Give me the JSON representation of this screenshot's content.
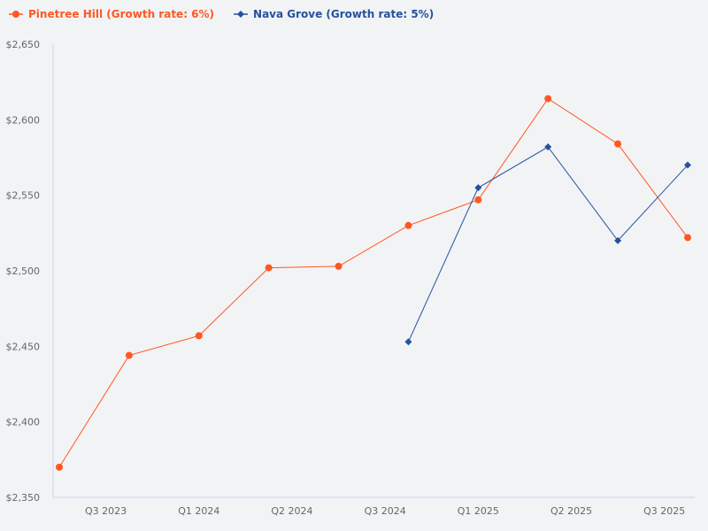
{
  "chart_data": {
    "type": "line",
    "title": "",
    "xlabel": "",
    "ylabel": "",
    "ylim": [
      2350,
      2650
    ],
    "yticks": [
      2350,
      2400,
      2450,
      2500,
      2550,
      2600,
      2650
    ],
    "ytick_labels": [
      "$2,350",
      "$2,400",
      "$2,450",
      "$2,500",
      "$2,550",
      "$2,600",
      "$2,650"
    ],
    "xlim": [
      "2023-07",
      "2025-10"
    ],
    "xticks": [
      {
        "date": "2023-09",
        "label": "Q3 2023"
      },
      {
        "date": "2024-01",
        "label": "Q1 2024"
      },
      {
        "date": "2024-05",
        "label": "Q2 2024"
      },
      {
        "date": "2024-09",
        "label": "Q3 2024"
      },
      {
        "date": "2025-01",
        "label": "Q1 2025"
      },
      {
        "date": "2025-05",
        "label": "Q2 2025"
      },
      {
        "date": "2025-09",
        "label": "Q3 2025"
      }
    ],
    "grid": false,
    "legend_position": "top-left",
    "series": [
      {
        "name": "Pinetree Hill (Growth rate: 6%)",
        "color": "#ff5722",
        "marker": "circle",
        "x": [
          "2023-07",
          "2023-10",
          "2024-01",
          "2024-04",
          "2024-07",
          "2024-10",
          "2025-01",
          "2025-04",
          "2025-07",
          "2025-10"
        ],
        "values": [
          2370,
          2444,
          2457,
          2502,
          2503,
          2530,
          2547,
          2614,
          2584,
          2522
        ]
      },
      {
        "name": "Nava Grove (Growth rate: 5%)",
        "color": "#2451a0",
        "marker": "diamond",
        "x": [
          "2024-10",
          "2025-01",
          "2025-04",
          "2025-07",
          "2025-10"
        ],
        "values": [
          2453,
          2555,
          2582,
          2520,
          2570
        ]
      }
    ]
  }
}
